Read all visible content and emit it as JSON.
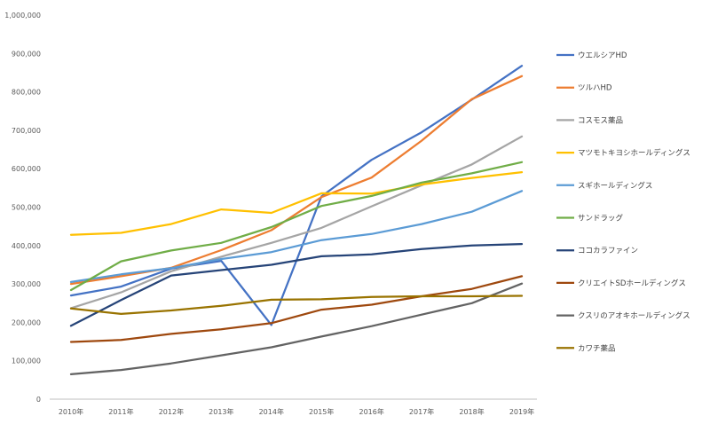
{
  "chart_data": {
    "type": "line",
    "title": "",
    "xlabel": "",
    "ylabel": "",
    "categories": [
      "2010年",
      "2011年",
      "2012年",
      "2013年",
      "2014年",
      "2015年",
      "2016年",
      "2017年",
      "2018年",
      "2019年"
    ],
    "ylim": [
      0,
      1000000
    ],
    "yticks": [
      0,
      100000,
      200000,
      300000,
      400000,
      500000,
      600000,
      700000,
      800000,
      900000,
      1000000
    ],
    "ytick_labels": [
      "0",
      "100,000",
      "200,000",
      "300,000",
      "400,000",
      "500,000",
      "600,000",
      "700,000",
      "800,000",
      "900,000",
      "1,000,000"
    ],
    "grid": false,
    "legend_position": "right",
    "series": [
      {
        "name": "ウエルシアHD",
        "color": "#4472C4",
        "values": [
          270000,
          293000,
          340000,
          360000,
          193000,
          528000,
          623000,
          695000,
          780000,
          868000
        ]
      },
      {
        "name": "ツルハHD",
        "color": "#ED7D31",
        "values": [
          300000,
          320000,
          342000,
          388000,
          440000,
          526000,
          577000,
          673000,
          781000,
          841000
        ]
      },
      {
        "name": "コスモス薬品",
        "color": "#A5A5A5",
        "values": [
          237000,
          278000,
          333000,
          371000,
          407000,
          446000,
          502000,
          557000,
          611000,
          684000
        ]
      },
      {
        "name": "マツモトキヨシホールディングス",
        "color": "#FFC000",
        "values": [
          428000,
          433000,
          456000,
          494000,
          485000,
          536000,
          535000,
          559000,
          576000,
          591000
        ]
      },
      {
        "name": "スギホールディングス",
        "color": "#5B9BD5",
        "values": [
          305000,
          325000,
          341000,
          365000,
          383000,
          414000,
          430000,
          456000,
          488000,
          542000
        ]
      },
      {
        "name": "サンドラッグ",
        "color": "#70AD47",
        "values": [
          284000,
          359000,
          387000,
          407000,
          448000,
          503000,
          529000,
          564000,
          588000,
          617000
        ]
      },
      {
        "name": "ココカラファイン",
        "color": "#264478",
        "values": [
          191000,
          258000,
          322000,
          336000,
          350000,
          372000,
          377000,
          391000,
          400000,
          404000
        ]
      },
      {
        "name": "クリエイトSDホールディングス",
        "color": "#9E480E",
        "values": [
          149000,
          154000,
          170000,
          182000,
          198000,
          233000,
          246000,
          268000,
          287000,
          320000
        ]
      },
      {
        "name": "クスリのアオキホールディングス",
        "color": "#636363",
        "values": [
          65000,
          76000,
          93000,
          114000,
          135000,
          163000,
          190000,
          220000,
          250000,
          301000
        ]
      },
      {
        "name": "カワチ薬品",
        "color": "#997300",
        "values": [
          236000,
          222000,
          231000,
          243000,
          259000,
          260000,
          266000,
          268000,
          268000,
          269000
        ]
      }
    ]
  }
}
